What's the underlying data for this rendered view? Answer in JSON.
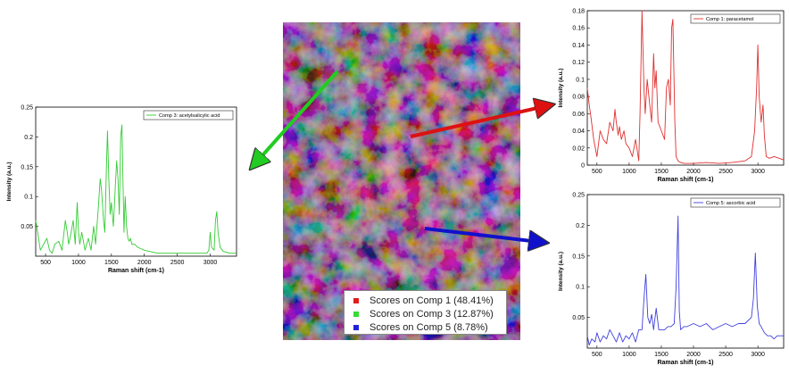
{
  "chart_data": [
    {
      "type": "line",
      "legend": "Comp 3: acetylsalicylic acid",
      "xlabel": "Raman shift (cm-1)",
      "ylabel": "Intensity (a.u.)",
      "color": "#33cc33",
      "xlim": [
        350,
        3400
      ],
      "ylim": [
        0,
        0.25
      ],
      "xticks": [
        500,
        1000,
        1500,
        2000,
        2500,
        3000
      ],
      "yticks": [
        0.05,
        0.1,
        0.15,
        0.2,
        0.25
      ],
      "ytick_labels": [
        "0.05",
        "0.1",
        "0.15",
        "0.2",
        "0.25"
      ],
      "x": [
        350,
        380,
        420,
        470,
        520,
        560,
        600,
        640,
        700,
        750,
        780,
        800,
        830,
        850,
        880,
        920,
        950,
        980,
        1000,
        1020,
        1050,
        1100,
        1150,
        1190,
        1230,
        1260,
        1300,
        1330,
        1350,
        1380,
        1400,
        1420,
        1440,
        1460,
        1480,
        1500,
        1530,
        1560,
        1580,
        1600,
        1620,
        1640,
        1660,
        1690,
        1710,
        1730,
        1750,
        1770,
        1790,
        1810,
        1850,
        1900,
        2000,
        2200,
        2400,
        2600,
        2800,
        2950,
        2980,
        3000,
        3020,
        3060,
        3080,
        3100,
        3120,
        3150,
        3200,
        3300,
        3400
      ],
      "y": [
        0.06,
        0.04,
        0.01,
        0.02,
        0.03,
        0.01,
        0.005,
        0.02,
        0.025,
        0.01,
        0.04,
        0.06,
        0.04,
        0.02,
        0.035,
        0.06,
        0.02,
        0.09,
        0.04,
        0.02,
        0.04,
        0.01,
        0.03,
        0.01,
        0.05,
        0.02,
        0.08,
        0.13,
        0.11,
        0.06,
        0.04,
        0.13,
        0.21,
        0.13,
        0.07,
        0.09,
        0.05,
        0.12,
        0.16,
        0.13,
        0.07,
        0.2,
        0.22,
        0.04,
        0.1,
        0.05,
        0.03,
        0.025,
        0.03,
        0.02,
        0.02,
        0.015,
        0.01,
        0.005,
        0.005,
        0.005,
        0.005,
        0.005,
        0.01,
        0.04,
        0.015,
        0.01,
        0.06,
        0.075,
        0.04,
        0.015,
        0.008,
        0.005,
        0.005
      ]
    },
    {
      "type": "line",
      "legend": "Comp 1: paracetamol",
      "xlabel": "Raman shift (cm-1)",
      "ylabel": "Intensity (a.u.)",
      "color": "#e03030",
      "xlim": [
        350,
        3400
      ],
      "ylim": [
        0,
        0.18
      ],
      "xticks": [
        500,
        1000,
        1500,
        2000,
        2500,
        3000
      ],
      "yticks": [
        0,
        0.02,
        0.04,
        0.06,
        0.08,
        0.1,
        0.12,
        0.14,
        0.16,
        0.18
      ],
      "ytick_labels": [
        "0",
        "0.02",
        "0.04",
        "0.06",
        "0.08",
        "0.1",
        "0.12",
        "0.14",
        "0.16",
        "0.18"
      ],
      "x": [
        350,
        380,
        400,
        450,
        500,
        550,
        600,
        650,
        700,
        750,
        780,
        800,
        830,
        850,
        880,
        920,
        950,
        1000,
        1050,
        1100,
        1150,
        1170,
        1200,
        1230,
        1250,
        1280,
        1320,
        1350,
        1380,
        1400,
        1420,
        1450,
        1500,
        1550,
        1580,
        1610,
        1640,
        1660,
        1680,
        1710,
        1730,
        1760,
        1800,
        1850,
        2000,
        2200,
        2400,
        2600,
        2800,
        2900,
        2950,
        2980,
        3000,
        3020,
        3050,
        3080,
        3100,
        3130,
        3180,
        3250,
        3330,
        3400
      ],
      "y": [
        0.09,
        0.07,
        0.06,
        0.03,
        0.01,
        0.04,
        0.03,
        0.025,
        0.05,
        0.04,
        0.065,
        0.05,
        0.035,
        0.045,
        0.03,
        0.04,
        0.025,
        0.02,
        0.01,
        0.03,
        0.005,
        0.06,
        0.18,
        0.09,
        0.06,
        0.1,
        0.07,
        0.05,
        0.13,
        0.09,
        0.11,
        0.05,
        0.04,
        0.03,
        0.09,
        0.1,
        0.07,
        0.16,
        0.17,
        0.05,
        0.01,
        0.005,
        0.003,
        0.002,
        0.002,
        0.003,
        0.002,
        0.003,
        0.005,
        0.01,
        0.04,
        0.09,
        0.14,
        0.08,
        0.05,
        0.07,
        0.035,
        0.01,
        0.008,
        0.01,
        0.008,
        0.006
      ]
    },
    {
      "type": "line",
      "legend": "Comp 5: ascorbic acid",
      "xlabel": "Raman shift (cm-1)",
      "ylabel": "Intensity (a.u.)",
      "color": "#4040dd",
      "xlim": [
        350,
        3400
      ],
      "ylim": [
        0,
        0.25
      ],
      "xticks": [
        500,
        1000,
        1500,
        2000,
        2500,
        3000
      ],
      "yticks": [
        0.05,
        0.1,
        0.15,
        0.2,
        0.25
      ],
      "ytick_labels": [
        "0.05",
        "0.1",
        "0.15",
        "0.2",
        "0.25"
      ],
      "x": [
        350,
        380,
        420,
        470,
        500,
        550,
        600,
        650,
        700,
        750,
        800,
        850,
        900,
        950,
        1000,
        1050,
        1100,
        1150,
        1200,
        1230,
        1260,
        1290,
        1320,
        1350,
        1380,
        1420,
        1460,
        1500,
        1550,
        1600,
        1650,
        1700,
        1730,
        1760,
        1780,
        1800,
        1850,
        1900,
        2000,
        2100,
        2200,
        2300,
        2400,
        2500,
        2600,
        2700,
        2800,
        2850,
        2900,
        2930,
        2960,
        2990,
        3020,
        3050,
        3100,
        3150,
        3200,
        3250,
        3300,
        3400
      ],
      "y": [
        0.02,
        0.005,
        0.015,
        0.01,
        0.025,
        0.01,
        0.02,
        0.015,
        0.03,
        0.02,
        0.01,
        0.025,
        0.01,
        0.02,
        0.015,
        0.025,
        0.01,
        0.03,
        0.03,
        0.08,
        0.12,
        0.05,
        0.04,
        0.055,
        0.03,
        0.065,
        0.03,
        0.03,
        0.03,
        0.035,
        0.035,
        0.04,
        0.1,
        0.215,
        0.06,
        0.03,
        0.035,
        0.035,
        0.04,
        0.035,
        0.04,
        0.03,
        0.035,
        0.04,
        0.035,
        0.04,
        0.04,
        0.045,
        0.05,
        0.08,
        0.155,
        0.07,
        0.04,
        0.035,
        0.025,
        0.02,
        0.02,
        0.015,
        0.02,
        0.02
      ]
    }
  ],
  "map_legend": [
    {
      "label": "Scores on Comp 1 (48.41%)",
      "color": "#e21b1b"
    },
    {
      "label": "Scores on Comp 3 (12.87%)",
      "color": "#33dd33"
    },
    {
      "label": "Scores on Comp 5 (8.78%)",
      "color": "#2222dd"
    }
  ]
}
